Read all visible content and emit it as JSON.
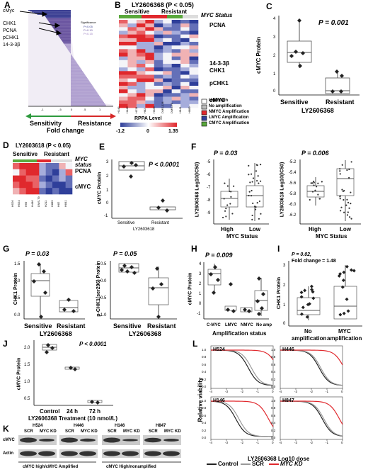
{
  "panels": {
    "A": {
      "letter": "A",
      "genes": [
        "cMyc",
        "CHK1",
        "PCNA",
        "pCHK1",
        "14-3-3β"
      ],
      "legend": [
        "Significance",
        "P<0.05",
        "P<0.10",
        "P<0.15"
      ],
      "ticks": [
        "-1",
        "-.5",
        "0",
        ".5",
        "1"
      ],
      "axis_left": "Sensitivity",
      "axis_right": "Resistance",
      "axis_bottom": "Fold change"
    },
    "B": {
      "letter": "B",
      "title": "LY2606368 (P < 0.05)",
      "groups": [
        "Sensitive",
        "Resistant"
      ],
      "status_label": "MYC Status",
      "genes": [
        "PCNA",
        "14-3-3β",
        "CHK1",
        "pCHK1",
        "cMYC"
      ],
      "cells": [
        "H146",
        "H446",
        "H211",
        "H82",
        "H526",
        "DMS-114",
        "DMS-79",
        "H841",
        "H889"
      ],
      "scale_title": "RPPA Level",
      "scale_ticks": [
        "-1.2",
        "0",
        "1.35"
      ],
      "legend": [
        "Unknown",
        "No amplification",
        "NMYC Amplification",
        "LMYC Amplification",
        "CMYC Amplification"
      ]
    },
    "C": {
      "letter": "C",
      "pvalue": "P = 0.001",
      "ylabel": "cMYC Protein",
      "groups": [
        "Sensitive",
        "Resistant"
      ],
      "drug": "LY2606368",
      "yticks": [
        "4",
        "3",
        "2",
        "1",
        "0"
      ]
    },
    "D": {
      "letter": "D",
      "title": "LY2603618 (P < 0.05)",
      "groups": [
        "Sensitive",
        "Resistant"
      ],
      "status_label": "MYC status",
      "genes": [
        "PCNA",
        "cMYC"
      ],
      "cells": [
        "H526",
        "H524",
        "H69",
        "H446",
        "DMS-79",
        "H211",
        "H889",
        "H82",
        "H841"
      ]
    },
    "E": {
      "letter": "E",
      "pvalue": "P < 0.0001",
      "ylabel": "cMYC Protein",
      "groups": [
        "Sensitive",
        "Resistant"
      ],
      "drug": "LY2603618",
      "yticks": [
        "3",
        "2",
        "1",
        "0",
        "-1"
      ]
    },
    "F": {
      "letter": "F",
      "left": {
        "pvalue": "P = 0.03",
        "ylabel": "LY2606368 Log10(IC50)",
        "groups": [
          "High",
          "Low"
        ],
        "xlabel": "MYC Status",
        "yticks": [
          "-5",
          "-6",
          "-7",
          "-8",
          "-9"
        ]
      },
      "right": {
        "pvalue": "P = 0.006",
        "ylabel": "LY2603618 Log10(IC50)",
        "groups": [
          "High",
          "Low"
        ],
        "xlabel": "MYC Status",
        "yticks": [
          "-5.2",
          "-5.4",
          "-5.6",
          "-5.8",
          "-6.0",
          "-6.2"
        ]
      }
    },
    "G": {
      "letter": "G",
      "left": {
        "pvalue": "P = 0.03",
        "ylabel": "CHK1 Protein",
        "groups": [
          "Sensitive",
          "Resistant"
        ],
        "drug": "LY2606368",
        "yticks": [
          "1.5",
          "1.0",
          "0.5",
          "0.0"
        ]
      },
      "right": {
        "pvalue": "P = 0.05",
        "ylabel": "p-CHK1(ser296) Protein",
        "groups": [
          "Sensitive",
          "Resistant"
        ],
        "drug": "LY2606368",
        "yticks": [
          "0.5",
          "0.0",
          "-0.5",
          "-1.0"
        ]
      }
    },
    "H": {
      "letter": "H",
      "pvalue": "P = 0.009",
      "ylabel": "cMYC Protein",
      "groups": [
        "C-MYC",
        "LMYC",
        "NMYC",
        "No amp"
      ],
      "xlabel": "Amplification status",
      "yticks": [
        "4",
        "3",
        "2",
        "1",
        "0",
        "-1"
      ]
    },
    "I": {
      "letter": "I",
      "pvalue": "P = 0.02,",
      "fold": "Fold change = 1.48",
      "ylabel": "CHK1 Protein",
      "groups": [
        "No amplification",
        "MYC amplification"
      ],
      "group_lines": [
        [
          "No",
          "amplification"
        ],
        [
          "MYC",
          "amplification"
        ]
      ],
      "yticks": [
        "3",
        "2",
        "1",
        "0"
      ]
    },
    "J": {
      "letter": "J",
      "pvalue": "P < 0.0001",
      "ylabel": "cMYC Protein",
      "groups": [
        "Control",
        "24 h",
        "72 h"
      ],
      "treatment": "LY2606368 Treatment (10 nmol/L)",
      "yticks": [
        "2.0",
        "1.5",
        "1.0",
        "0.5"
      ]
    },
    "K": {
      "letter": "K",
      "lines": [
        "H524",
        "H446",
        "H146",
        "H847"
      ],
      "lanes": [
        "SCR",
        "MYC KD"
      ],
      "rows": [
        "cMYC",
        "Actin"
      ],
      "captions": [
        "cMYC high/cMYC Amplified",
        "cMYC High/nonamplified"
      ]
    },
    "L": {
      "letter": "L",
      "panels": [
        "H524",
        "H446",
        "H146",
        "H847"
      ],
      "ylabel": "Relative viability",
      "xlabel": "LY2606368 Log10 dose",
      "yticks": [
        "1.0",
        "0.8",
        "0.6",
        "0.4",
        "0.2",
        "0.0"
      ],
      "xticks": [
        "-4",
        "-3",
        "-2",
        "-1",
        "0"
      ],
      "legend": [
        "Control",
        "SCR",
        "MYC KD"
      ]
    }
  },
  "colors": {
    "red": "#e0282d",
    "blue": "#2f3f9a",
    "green": "#5aa83c",
    "black": "#222222",
    "gray": "#999999"
  }
}
